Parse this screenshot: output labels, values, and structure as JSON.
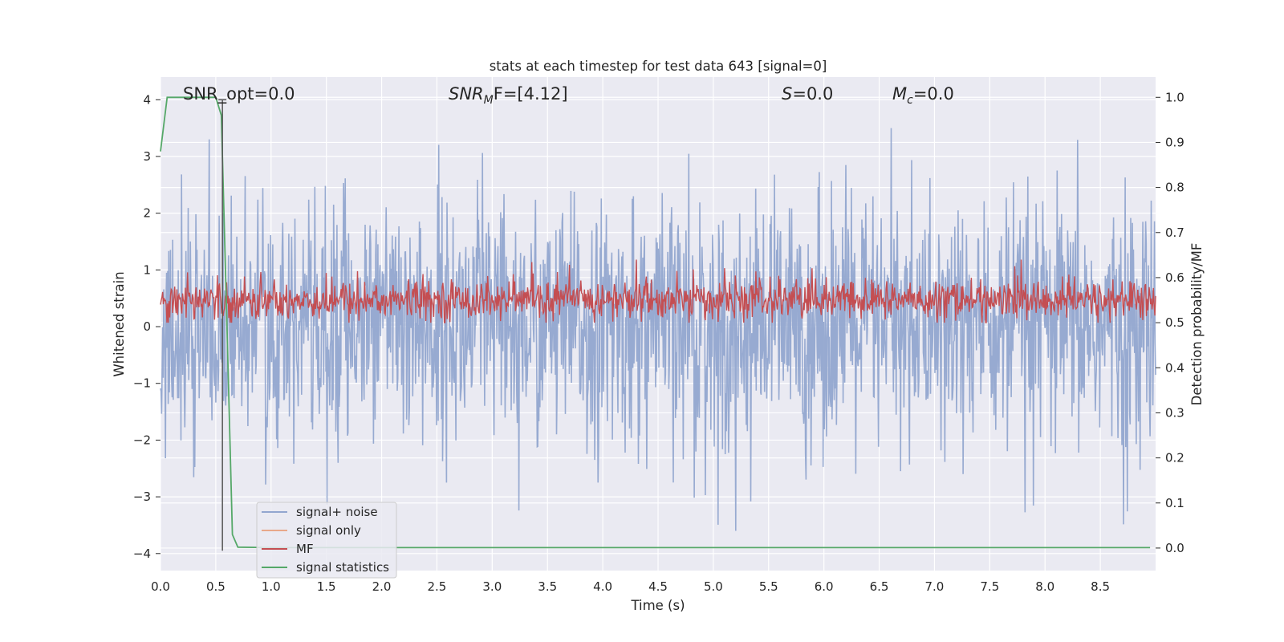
{
  "chart_data": {
    "type": "line",
    "title": "stats at each timestep for test data 643 [signal=0]",
    "xlabel": "Time (s)",
    "ylabel_left": "Whitened strain",
    "ylabel_right": "Detection probability/MF",
    "xlim": [
      0.0,
      9.0
    ],
    "ylim_left": [
      -4.3,
      4.4
    ],
    "ylim_right": [
      -0.05,
      1.045
    ],
    "x_ticks": [
      0.0,
      0.5,
      1.0,
      1.5,
      2.0,
      2.5,
      3.0,
      3.5,
      4.0,
      4.5,
      5.0,
      5.5,
      6.0,
      6.5,
      7.0,
      7.5,
      8.0,
      8.5
    ],
    "x_tick_labels": [
      "0.0",
      "0.5",
      "1.0",
      "1.5",
      "2.0",
      "2.5",
      "3.0",
      "3.5",
      "4.0",
      "4.5",
      "5.0",
      "5.5",
      "6.0",
      "6.5",
      "7.0",
      "7.5",
      "8.0",
      "8.5"
    ],
    "y_left_ticks": [
      -4,
      -3,
      -2,
      -1,
      0,
      1,
      2,
      3,
      4
    ],
    "y_left_tick_labels": [
      "−4",
      "−3",
      "−2",
      "−1",
      "0",
      "1",
      "2",
      "3",
      "4"
    ],
    "y_right_ticks": [
      0.0,
      0.1,
      0.2,
      0.3,
      0.4,
      0.5,
      0.6,
      0.7,
      0.8,
      0.9,
      1.0
    ],
    "y_right_tick_labels": [
      "0.0",
      "0.1",
      "0.2",
      "0.3",
      "0.4",
      "0.5",
      "0.6",
      "0.7",
      "0.8",
      "0.9",
      "1.0"
    ],
    "grid": true,
    "legend_position": "lower-left",
    "annotations": {
      "snr_opt": "SNR_opt=0.0",
      "snr_mf_label": "SNR",
      "snr_mf_sub": "M",
      "snr_mf_rest": "F=[4.12]",
      "s_label": "S",
      "s_rest": "=0.0",
      "mc_label": "M",
      "mc_sub": "c",
      "mc_rest": "=0.0"
    },
    "series": [
      {
        "name": "signal+ noise",
        "axis": "left",
        "color": "#92a6cf",
        "description_of_values": "whitened noise, approx. uniform amplitude, range about -3.6 to 4.0",
        "approx_range": [
          -3.6,
          4.0
        ]
      },
      {
        "name": "signal only",
        "axis": "left",
        "color": "#e8a88a",
        "values": []
      },
      {
        "name": "MF",
        "axis": "right",
        "color": "#c44e52",
        "approx_range": [
          0.5,
          0.62
        ]
      },
      {
        "name": "signal statistics",
        "axis": "right",
        "color": "#55a868",
        "x": [
          0.0,
          0.06,
          0.1,
          0.5,
          0.55,
          0.6,
          0.65,
          0.7,
          1.0,
          2.0,
          4.0,
          6.0,
          8.0,
          8.95
        ],
        "y": [
          0.88,
          1.0,
          1.0,
          1.0,
          0.96,
          0.5,
          0.03,
          0.002,
          0.001,
          0.001,
          0.001,
          0.001,
          0.001,
          0.001
        ]
      }
    ],
    "vline": {
      "x": 0.56,
      "y_left_range": [
        -3.95,
        4.0
      ]
    }
  }
}
